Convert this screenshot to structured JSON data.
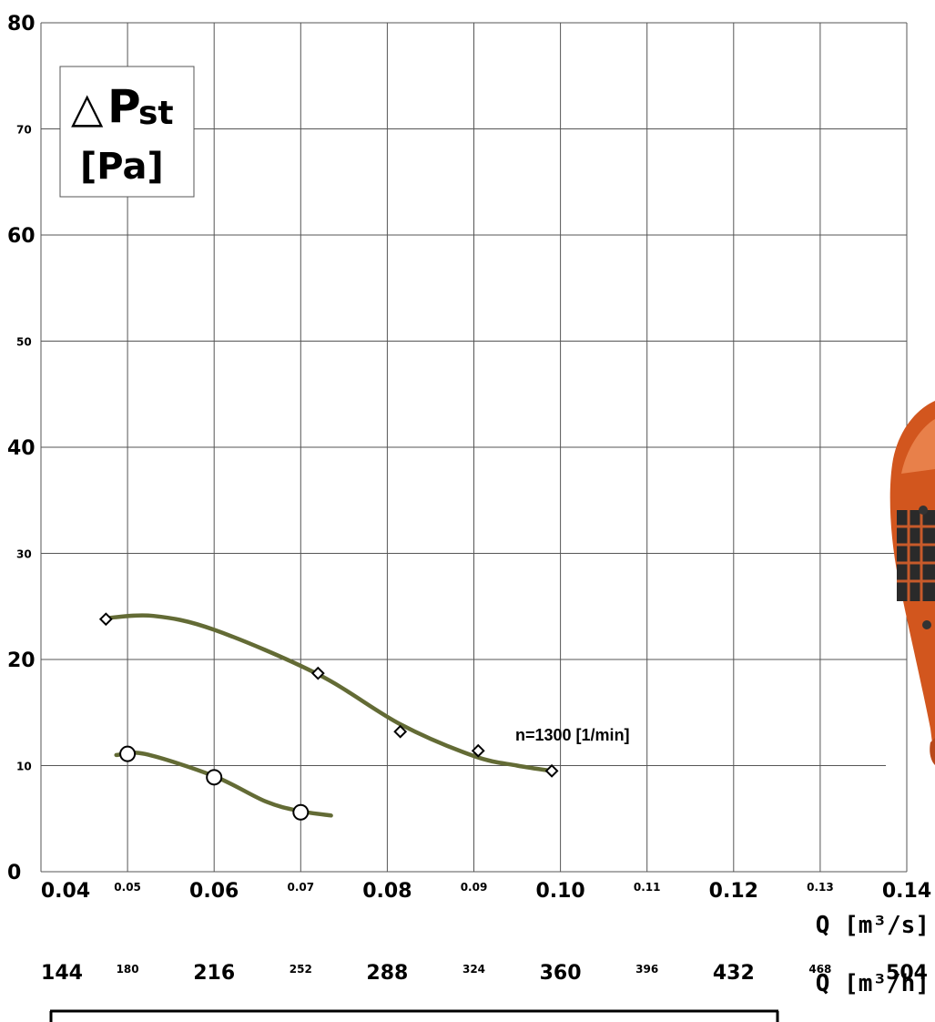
{
  "chart_data": {
    "type": "line",
    "ylabel_symbol": "△",
    "ylabel_letter": "P",
    "ylabel_sub": "st",
    "ylabel_unit": "[Pa]",
    "xlabel_main": "Q [m³/s]",
    "xlabel_secondary": "Q [m³/h]",
    "xlim": [
      0.04,
      0.14
    ],
    "ylim": [
      0,
      80
    ],
    "grid": true,
    "x_ticks": [
      "0.04",
      "0.05",
      "0.06",
      "0.07",
      "0.08",
      "0.09",
      "0.10",
      "0.11",
      "0.12",
      "0.13",
      "0.14"
    ],
    "x_ticks_secondary": [
      "144",
      "180",
      "216",
      "252",
      "288",
      "324",
      "360",
      "396",
      "432",
      "468",
      "504"
    ],
    "y_ticks": [
      "0",
      "10",
      "20",
      "30",
      "40",
      "50",
      "60",
      "70",
      "80"
    ],
    "reference_line_y": 10,
    "annotation": "n=1300 [1/min]",
    "series": [
      {
        "marker": "diamond",
        "points": [
          [
            0.0475,
            23.8
          ],
          [
            0.072,
            18.7
          ],
          [
            0.0815,
            13.2
          ],
          [
            0.0905,
            11.4
          ],
          [
            0.099,
            9.5
          ]
        ],
        "curve": [
          [
            0.0475,
            23.9
          ],
          [
            0.053,
            24.1
          ],
          [
            0.06,
            22.8
          ],
          [
            0.072,
            18.6
          ],
          [
            0.0815,
            13.9
          ],
          [
            0.09,
            10.9
          ],
          [
            0.095,
            10.0
          ],
          [
            0.099,
            9.5
          ]
        ]
      },
      {
        "marker": "circle",
        "points": [
          [
            0.05,
            11.1
          ],
          [
            0.06,
            8.9
          ],
          [
            0.07,
            5.6
          ]
        ],
        "curve": [
          [
            0.0487,
            11.0
          ],
          [
            0.052,
            11.1
          ],
          [
            0.06,
            9.0
          ],
          [
            0.066,
            6.6
          ],
          [
            0.07,
            5.7
          ],
          [
            0.0735,
            5.3
          ]
        ]
      }
    ]
  },
  "colors": {
    "curve": "#636b35",
    "product_orange": "#d2561e"
  },
  "decoration": {
    "product_image": "fan-product-photo"
  }
}
